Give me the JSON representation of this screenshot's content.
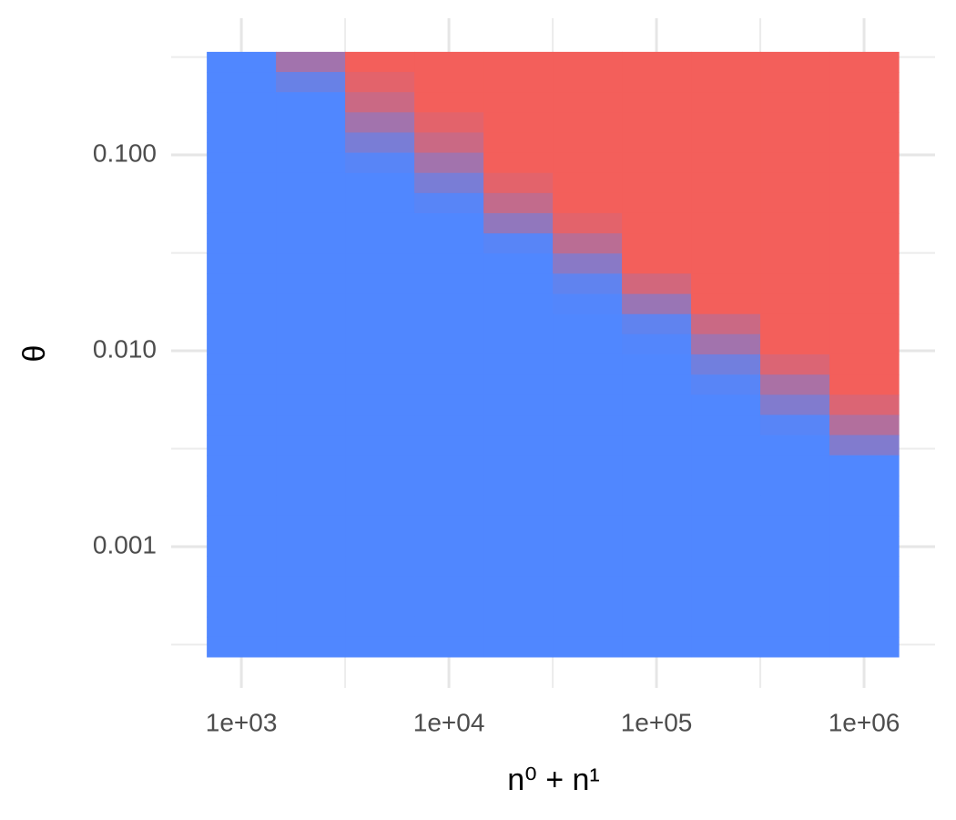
{
  "chart_data": {
    "type": "heatmap",
    "x_label": "n⁰ + n¹",
    "y_label": "θ",
    "x": [
      1000,
      2154,
      4642,
      10000,
      21544,
      46416,
      100000,
      215443,
      464159,
      1000000
    ],
    "y": [
      0.2985,
      0.2355,
      0.1858,
      0.1466,
      0.1156,
      0.0912,
      0.0719,
      0.0568,
      0.0448,
      0.0353,
      0.0279,
      0.022,
      0.0173,
      0.0137,
      0.0108,
      0.00851,
      0.00671,
      0.0053,
      0.00418,
      0.0033,
      0.0026,
      0.00205,
      0.00162,
      0.00128,
      0.00101,
      0.000794,
      0.000627,
      0.000494,
      0.00039,
      0.000308
    ],
    "values": [
      [
        0,
        0.5,
        1,
        1,
        1,
        1,
        1,
        1,
        1,
        1
      ],
      [
        0,
        0.15,
        0.9,
        1,
        1,
        1,
        1,
        1,
        1,
        1
      ],
      [
        0,
        0,
        0.75,
        1,
        1,
        1,
        1,
        1,
        1,
        1
      ],
      [
        0,
        0,
        0.5,
        0.9,
        1,
        1,
        1,
        1,
        1,
        1
      ],
      [
        0,
        0,
        0.25,
        0.75,
        1,
        1,
        1,
        1,
        1,
        1
      ],
      [
        0,
        0,
        0.05,
        0.5,
        1,
        1,
        1,
        1,
        1,
        1
      ],
      [
        0,
        0,
        0,
        0.25,
        0.9,
        1,
        1,
        1,
        1,
        1
      ],
      [
        0,
        0,
        0,
        0.05,
        0.7,
        1,
        1,
        1,
        1,
        1
      ],
      [
        0,
        0,
        0,
        0,
        0.4,
        0.9,
        1,
        1,
        1,
        1
      ],
      [
        0,
        0,
        0,
        0,
        0.05,
        0.65,
        1,
        1,
        1,
        1
      ],
      [
        0,
        0,
        0,
        0,
        0,
        0.35,
        1,
        1,
        1,
        1
      ],
      [
        0,
        0,
        0,
        0,
        0,
        0.1,
        0.8,
        1,
        1,
        1
      ],
      [
        0,
        0,
        0,
        0,
        0,
        0.02,
        0.45,
        1,
        1,
        1
      ],
      [
        0,
        0,
        0,
        0,
        0,
        0,
        0.1,
        0.75,
        1,
        1
      ],
      [
        0,
        0,
        0,
        0,
        0,
        0,
        0.02,
        0.5,
        1,
        1
      ],
      [
        0,
        0,
        0,
        0,
        0,
        0,
        0,
        0.2,
        0.85,
        1
      ],
      [
        0,
        0,
        0,
        0,
        0,
        0,
        0,
        0.05,
        0.55,
        1
      ],
      [
        0,
        0,
        0,
        0,
        0,
        0,
        0,
        0,
        0.3,
        0.85
      ],
      [
        0,
        0,
        0,
        0,
        0,
        0,
        0,
        0,
        0.05,
        0.6
      ],
      [
        0,
        0,
        0,
        0,
        0,
        0,
        0,
        0,
        0,
        0.3
      ],
      [
        0,
        0,
        0,
        0,
        0,
        0,
        0,
        0,
        0,
        0
      ],
      [
        0,
        0,
        0,
        0,
        0,
        0,
        0,
        0,
        0,
        0
      ],
      [
        0,
        0,
        0,
        0,
        0,
        0,
        0,
        0,
        0,
        0
      ],
      [
        0,
        0,
        0,
        0,
        0,
        0,
        0,
        0,
        0,
        0
      ],
      [
        0,
        0,
        0,
        0,
        0,
        0,
        0,
        0,
        0,
        0
      ],
      [
        0,
        0,
        0,
        0,
        0,
        0,
        0,
        0,
        0,
        0
      ],
      [
        0,
        0,
        0,
        0,
        0,
        0,
        0,
        0,
        0,
        0
      ],
      [
        0,
        0,
        0,
        0,
        0,
        0,
        0,
        0,
        0,
        0
      ],
      [
        0,
        0,
        0,
        0,
        0,
        0,
        0,
        0,
        0,
        0
      ],
      [
        0,
        0,
        0,
        0,
        0,
        0,
        0,
        0,
        0,
        0
      ]
    ],
    "low_color": "#5087ff",
    "high_color": "#f35f5b",
    "xlog": true,
    "ylog": true,
    "xlim": [
      459,
      2198000
    ],
    "ylim": [
      0.00019,
      0.499
    ],
    "xticks": [
      {
        "value": 1000,
        "label": "1e+03"
      },
      {
        "value": 10000,
        "label": "1e+04"
      },
      {
        "value": 100000,
        "label": "1e+05"
      },
      {
        "value": 1000000,
        "label": "1e+06"
      }
    ],
    "yticks": [
      {
        "value": 0.1,
        "label": "0.100"
      },
      {
        "value": 0.01,
        "label": "0.010"
      },
      {
        "value": 0.001,
        "label": "0.001"
      }
    ],
    "xminor": [
      3162,
      31623,
      316228
    ],
    "yminor": [
      0.316,
      0.0316,
      0.00316,
      0.000316
    ],
    "grid": true
  }
}
